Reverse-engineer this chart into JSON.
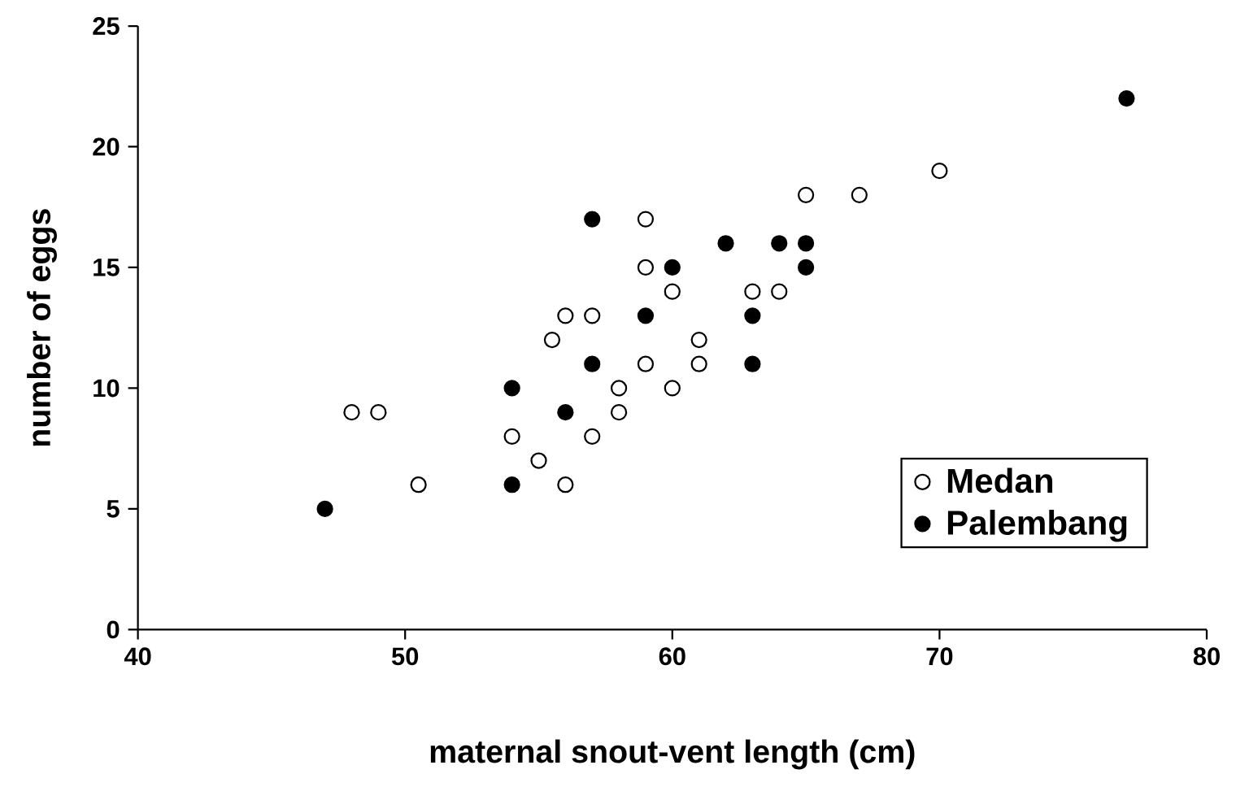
{
  "chart_data": {
    "type": "scatter",
    "xlabel": "maternal snout-vent length (cm)",
    "ylabel": "number of eggs",
    "xlim": [
      40,
      80
    ],
    "xticks": [
      40,
      50,
      60,
      70,
      80
    ],
    "ylim": [
      0,
      25
    ],
    "yticks": [
      0,
      5,
      10,
      15,
      20,
      25
    ],
    "grid": false,
    "legend": "bottom right",
    "marker": "circle",
    "series": [
      {
        "name": "Medan",
        "color": "#ffffff",
        "x": [
          48,
          49,
          50.5,
          54,
          55,
          56,
          55.5,
          56,
          57,
          57,
          58,
          58,
          59,
          59,
          59,
          60,
          60,
          61,
          61,
          63,
          64,
          65,
          67,
          70
        ],
        "values": [
          9,
          9,
          6,
          8,
          7,
          6,
          12,
          13,
          13,
          8,
          10,
          9,
          17,
          15,
          11,
          14,
          10,
          12,
          11,
          14,
          14,
          18,
          18,
          19
        ]
      },
      {
        "name": "Palembang",
        "color": "#000000",
        "x": [
          47,
          54,
          54,
          56,
          57,
          57,
          59,
          60,
          62,
          63,
          63,
          64,
          65,
          65,
          77
        ],
        "values": [
          5,
          10,
          6,
          9,
          17,
          11,
          13,
          15,
          16,
          13,
          11,
          16,
          16,
          15,
          22
        ]
      }
    ]
  }
}
